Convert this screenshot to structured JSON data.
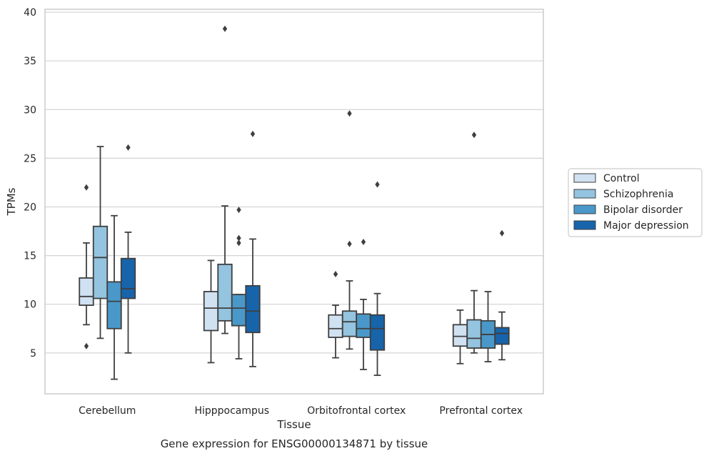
{
  "chart_data": {
    "type": "box",
    "title": "",
    "caption": "Gene expression for ENSG00000134871 by tissue",
    "xlabel": "Tissue",
    "ylabel": "TPMs",
    "ylim": [
      0.8,
      40.3
    ],
    "yticks": [
      5,
      10,
      15,
      20,
      25,
      30,
      35,
      40
    ],
    "grid": "horizontal",
    "legend_position": "right",
    "categories": [
      "Cerebellum",
      "Hipppocampus",
      "Orbitofrontal cortex",
      "Prefrontal cortex"
    ],
    "series": [
      {
        "name": "Control",
        "color": "#d0e1f2",
        "boxes": [
          {
            "whislo": 7.9,
            "q1": 9.9,
            "med": 10.8,
            "q3": 12.7,
            "whishi": 16.3,
            "fliers": [
              22.0,
              5.7
            ]
          },
          {
            "whislo": 4.0,
            "q1": 7.3,
            "med": 9.6,
            "q3": 11.3,
            "whishi": 14.5,
            "fliers": []
          },
          {
            "whislo": 4.5,
            "q1": 6.6,
            "med": 7.5,
            "q3": 8.9,
            "whishi": 9.9,
            "fliers": [
              13.1
            ]
          },
          {
            "whislo": 3.9,
            "q1": 5.7,
            "med": 6.7,
            "q3": 7.9,
            "whishi": 9.4,
            "fliers": []
          }
        ]
      },
      {
        "name": "Schizophrenia",
        "color": "#94c4df",
        "boxes": [
          {
            "whislo": 6.5,
            "q1": 10.6,
            "med": 14.8,
            "q3": 18.0,
            "whishi": 26.2,
            "fliers": []
          },
          {
            "whislo": 7.0,
            "q1": 8.3,
            "med": 9.6,
            "q3": 14.1,
            "whishi": 20.1,
            "fliers": [
              38.3
            ]
          },
          {
            "whislo": 5.4,
            "q1": 6.7,
            "med": 8.2,
            "q3": 9.3,
            "whishi": 12.4,
            "fliers": [
              29.6,
              16.2
            ]
          },
          {
            "whislo": 5.0,
            "q1": 5.5,
            "med": 6.5,
            "q3": 8.4,
            "whishi": 11.4,
            "fliers": [
              27.4
            ]
          }
        ]
      },
      {
        "name": "Bipolar disorder",
        "color": "#4a98c9",
        "boxes": [
          {
            "whislo": 2.3,
            "q1": 7.5,
            "med": 10.3,
            "q3": 12.3,
            "whishi": 19.1,
            "fliers": []
          },
          {
            "whislo": 4.4,
            "q1": 7.8,
            "med": 9.6,
            "q3": 11.0,
            "whishi": 11.0,
            "fliers": [
              19.7,
              16.8,
              16.3
            ]
          },
          {
            "whislo": 3.3,
            "q1": 6.6,
            "med": 7.5,
            "q3": 9.0,
            "whishi": 10.5,
            "fliers": [
              16.4
            ]
          },
          {
            "whislo": 4.1,
            "q1": 5.5,
            "med": 6.9,
            "q3": 8.3,
            "whishi": 11.3,
            "fliers": []
          }
        ]
      },
      {
        "name": "Major depression",
        "color": "#1764ab",
        "boxes": [
          {
            "whislo": 5.0,
            "q1": 10.6,
            "med": 11.6,
            "q3": 14.7,
            "whishi": 17.4,
            "fliers": [
              26.1
            ]
          },
          {
            "whislo": 3.6,
            "q1": 7.1,
            "med": 9.3,
            "q3": 11.9,
            "whishi": 16.7,
            "fliers": [
              27.5
            ]
          },
          {
            "whislo": 2.7,
            "q1": 5.3,
            "med": 7.5,
            "q3": 8.9,
            "whishi": 11.1,
            "fliers": [
              22.3
            ]
          },
          {
            "whislo": 4.3,
            "q1": 5.9,
            "med": 7.0,
            "q3": 7.6,
            "whishi": 9.2,
            "fliers": [
              17.3
            ]
          }
        ]
      }
    ]
  }
}
